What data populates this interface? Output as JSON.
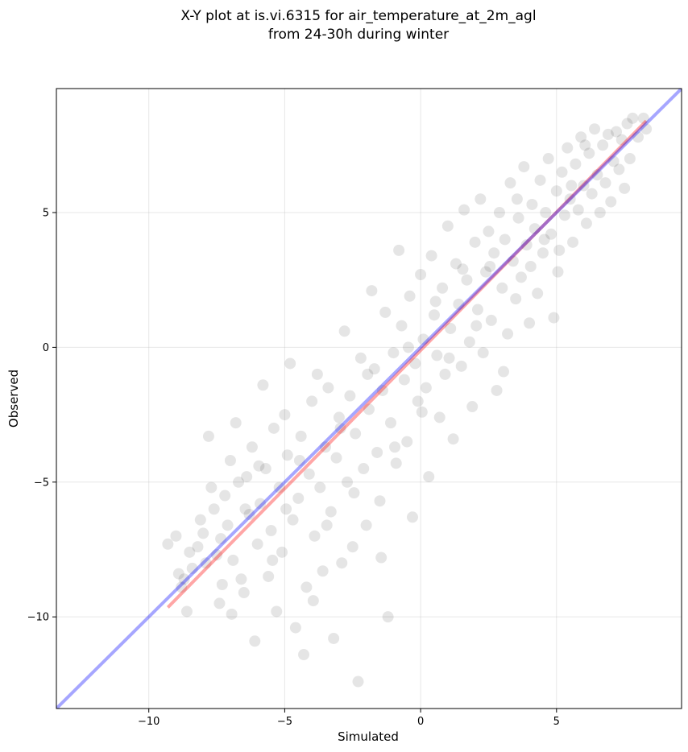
{
  "chart_data": {
    "type": "scatter",
    "title_line1": "X-Y plot at is.vi.6315 for air_temperature_at_2m_agl",
    "title_line2": "from 24-30h during winter",
    "xlabel": "Simulated",
    "ylabel": "Observed",
    "xlim": [
      -13.4,
      9.6
    ],
    "ylim": [
      -13.4,
      9.6
    ],
    "xticks": [
      -10,
      -5,
      0,
      5
    ],
    "yticks": [
      -10,
      -5,
      0,
      5
    ],
    "grid": true,
    "marker_color": "#000000",
    "marker_alpha": 0.1,
    "identity_line": {
      "color": "#0000ff",
      "alpha": 0.35,
      "from": [
        -13.4,
        -13.4
      ],
      "to": [
        9.6,
        9.6
      ]
    },
    "regression_line": {
      "color": "#ff0000",
      "alpha": 0.35,
      "from": [
        -9.3,
        -9.65
      ],
      "to": [
        8.3,
        8.4
      ]
    },
    "points": [
      [
        -9.3,
        -7.3
      ],
      [
        -9.0,
        -7.0
      ],
      [
        -8.9,
        -8.4
      ],
      [
        -8.7,
        -8.6
      ],
      [
        -8.6,
        -9.8
      ],
      [
        -8.5,
        -7.6
      ],
      [
        -8.4,
        -8.2
      ],
      [
        -8.2,
        -7.4
      ],
      [
        -8.0,
        -6.9
      ],
      [
        -7.9,
        -8.0
      ],
      [
        -7.8,
        -3.3
      ],
      [
        -7.7,
        -5.2
      ],
      [
        -7.6,
        -6.0
      ],
      [
        -7.5,
        -7.7
      ],
      [
        -7.4,
        -9.5
      ],
      [
        -7.3,
        -8.8
      ],
      [
        -7.2,
        -5.5
      ],
      [
        -7.1,
        -6.6
      ],
      [
        -7.0,
        -4.2
      ],
      [
        -6.9,
        -7.9
      ],
      [
        -6.8,
        -2.8
      ],
      [
        -6.7,
        -5.0
      ],
      [
        -6.6,
        -8.6
      ],
      [
        -6.5,
        -9.1
      ],
      [
        -6.4,
        -4.8
      ],
      [
        -6.3,
        -6.2
      ],
      [
        -6.2,
        -3.7
      ],
      [
        -6.1,
        -10.9
      ],
      [
        -6.0,
        -7.3
      ],
      [
        -5.9,
        -5.8
      ],
      [
        -5.8,
        -1.4
      ],
      [
        -5.7,
        -4.5
      ],
      [
        -5.6,
        -8.5
      ],
      [
        -5.5,
        -6.8
      ],
      [
        -5.4,
        -3.0
      ],
      [
        -5.3,
        -9.8
      ],
      [
        -5.2,
        -5.2
      ],
      [
        -5.1,
        -7.6
      ],
      [
        -5.0,
        -2.5
      ],
      [
        -4.9,
        -4.0
      ],
      [
        -4.8,
        -0.6
      ],
      [
        -4.7,
        -6.4
      ],
      [
        -4.6,
        -10.4
      ],
      [
        -4.5,
        -5.6
      ],
      [
        -4.4,
        -3.3
      ],
      [
        -4.3,
        -11.4
      ],
      [
        -4.2,
        -8.9
      ],
      [
        -4.1,
        -4.7
      ],
      [
        -4.0,
        -2.0
      ],
      [
        -3.9,
        -7.0
      ],
      [
        -3.8,
        -1.0
      ],
      [
        -3.7,
        -5.2
      ],
      [
        -3.6,
        -8.3
      ],
      [
        -3.5,
        -3.7
      ],
      [
        -3.4,
        -1.5
      ],
      [
        -3.3,
        -6.1
      ],
      [
        -3.2,
        -10.8
      ],
      [
        -3.1,
        -4.1
      ],
      [
        -3.0,
        -2.6
      ],
      [
        -2.9,
        -8.0
      ],
      [
        -2.8,
        0.6
      ],
      [
        -2.7,
        -5.0
      ],
      [
        -2.6,
        -1.8
      ],
      [
        -2.5,
        -7.4
      ],
      [
        -2.4,
        -3.2
      ],
      [
        -2.3,
        -12.4
      ],
      [
        -2.2,
        -0.4
      ],
      [
        -2.1,
        -4.5
      ],
      [
        -2.0,
        -6.6
      ],
      [
        -1.9,
        -2.3
      ],
      [
        -1.8,
        2.1
      ],
      [
        -1.7,
        -0.8
      ],
      [
        -1.6,
        -3.9
      ],
      [
        -1.5,
        -5.7
      ],
      [
        -1.4,
        -1.6
      ],
      [
        -1.3,
        1.3
      ],
      [
        -1.2,
        -10.0
      ],
      [
        -1.1,
        -2.8
      ],
      [
        -1.0,
        -0.2
      ],
      [
        -0.9,
        -4.3
      ],
      [
        -0.8,
        3.6
      ],
      [
        -0.7,
        0.8
      ],
      [
        -0.6,
        -1.2
      ],
      [
        -0.5,
        -3.5
      ],
      [
        -0.4,
        1.9
      ],
      [
        -0.3,
        -6.3
      ],
      [
        -0.2,
        -0.6
      ],
      [
        -0.1,
        -2.0
      ],
      [
        0.0,
        2.7
      ],
      [
        0.1,
        0.3
      ],
      [
        0.2,
        -1.5
      ],
      [
        0.3,
        -4.8
      ],
      [
        0.4,
        3.4
      ],
      [
        0.5,
        1.2
      ],
      [
        0.6,
        -0.3
      ],
      [
        0.7,
        -2.6
      ],
      [
        0.8,
        2.2
      ],
      [
        0.9,
        -1.0
      ],
      [
        1.0,
        4.5
      ],
      [
        1.1,
        0.7
      ],
      [
        1.2,
        -3.4
      ],
      [
        1.3,
        3.1
      ],
      [
        1.4,
        1.6
      ],
      [
        1.5,
        -0.7
      ],
      [
        1.6,
        5.1
      ],
      [
        1.7,
        2.5
      ],
      [
        1.8,
        0.2
      ],
      [
        1.9,
        -2.2
      ],
      [
        2.0,
        3.9
      ],
      [
        2.1,
        1.4
      ],
      [
        2.2,
        5.5
      ],
      [
        2.3,
        -0.2
      ],
      [
        2.4,
        2.8
      ],
      [
        2.5,
        4.3
      ],
      [
        2.6,
        1.0
      ],
      [
        2.7,
        3.5
      ],
      [
        2.8,
        -1.6
      ],
      [
        2.9,
        5.0
      ],
      [
        3.0,
        2.2
      ],
      [
        3.1,
        4.0
      ],
      [
        3.2,
        0.5
      ],
      [
        3.3,
        6.1
      ],
      [
        3.4,
        3.2
      ],
      [
        3.5,
        1.8
      ],
      [
        3.6,
        4.8
      ],
      [
        3.7,
        2.6
      ],
      [
        3.8,
        6.7
      ],
      [
        3.9,
        3.8
      ],
      [
        4.0,
        0.9
      ],
      [
        4.1,
        5.3
      ],
      [
        4.2,
        4.4
      ],
      [
        4.3,
        2.0
      ],
      [
        4.4,
        6.2
      ],
      [
        4.5,
        3.5
      ],
      [
        4.6,
        5.0
      ],
      [
        4.7,
        7.0
      ],
      [
        4.8,
        4.2
      ],
      [
        4.9,
        1.1
      ],
      [
        5.0,
        5.8
      ],
      [
        5.1,
        3.6
      ],
      [
        5.2,
        6.5
      ],
      [
        5.3,
        4.9
      ],
      [
        5.4,
        7.4
      ],
      [
        5.5,
        5.5
      ],
      [
        5.6,
        3.9
      ],
      [
        5.7,
        6.8
      ],
      [
        5.8,
        5.1
      ],
      [
        5.9,
        7.8
      ],
      [
        6.0,
        6.0
      ],
      [
        6.1,
        4.6
      ],
      [
        6.2,
        7.2
      ],
      [
        6.3,
        5.7
      ],
      [
        6.4,
        8.1
      ],
      [
        6.5,
        6.4
      ],
      [
        6.6,
        5.0
      ],
      [
        6.7,
        7.5
      ],
      [
        6.8,
        6.1
      ],
      [
        6.9,
        7.9
      ],
      [
        7.0,
        5.4
      ],
      [
        7.1,
        6.9
      ],
      [
        7.2,
        8.0
      ],
      [
        7.3,
        6.6
      ],
      [
        7.4,
        7.7
      ],
      [
        7.5,
        5.9
      ],
      [
        7.6,
        8.3
      ],
      [
        7.7,
        7.0
      ],
      [
        7.8,
        8.5
      ],
      [
        8.0,
        7.8
      ],
      [
        8.2,
        8.5
      ],
      [
        8.3,
        8.1
      ],
      [
        -8.8,
        -8.9
      ],
      [
        -8.1,
        -6.4
      ],
      [
        -7.35,
        -7.1
      ],
      [
        -6.95,
        -9.9
      ],
      [
        -6.45,
        -6.0
      ],
      [
        -5.95,
        -4.4
      ],
      [
        -5.45,
        -7.9
      ],
      [
        -4.95,
        -6.0
      ],
      [
        -4.45,
        -4.2
      ],
      [
        -3.95,
        -9.4
      ],
      [
        -3.45,
        -6.6
      ],
      [
        -2.95,
        -3.0
      ],
      [
        -2.45,
        -5.4
      ],
      [
        -1.95,
        -1.0
      ],
      [
        -1.45,
        -7.8
      ],
      [
        -0.95,
        -3.7
      ],
      [
        -0.45,
        0.0
      ],
      [
        0.05,
        -2.4
      ],
      [
        0.55,
        1.7
      ],
      [
        1.05,
        -0.4
      ],
      [
        1.55,
        2.9
      ],
      [
        2.05,
        0.8
      ],
      [
        2.55,
        3.0
      ],
      [
        3.05,
        -0.9
      ],
      [
        3.55,
        5.5
      ],
      [
        4.05,
        3.0
      ],
      [
        4.55,
        4.0
      ],
      [
        5.05,
        2.8
      ],
      [
        5.55,
        6.0
      ],
      [
        6.05,
        7.5
      ]
    ]
  }
}
